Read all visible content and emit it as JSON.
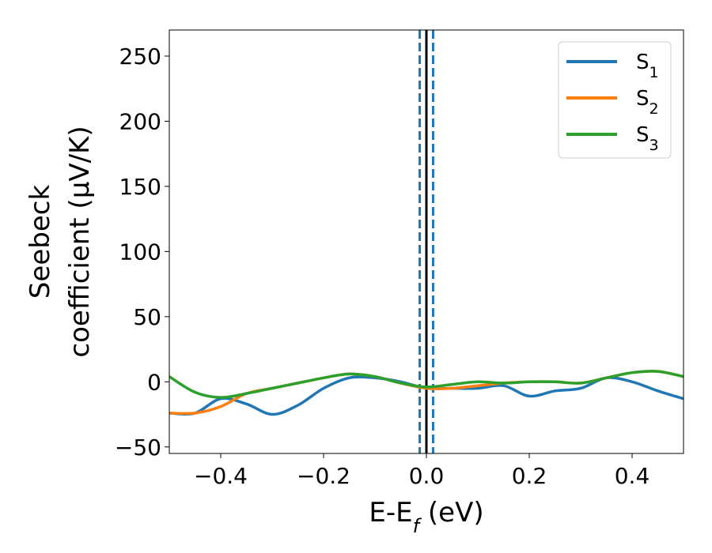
{
  "chart_data": {
    "type": "line",
    "xlabel": {
      "base": "E-E",
      "sub": "f",
      "unit": " (eV)"
    },
    "ylabel": {
      "line1": "Seebeck",
      "line2": "coefficient  (μV/K)"
    },
    "xlim": [
      -0.5,
      0.5
    ],
    "ylim": [
      -55,
      270
    ],
    "xticks": [
      -0.4,
      -0.2,
      0.0,
      0.2,
      0.4
    ],
    "xtick_labels": [
      "−0.4",
      "−0.2",
      "0.0",
      "0.2",
      "0.4"
    ],
    "yticks": [
      -50,
      0,
      50,
      100,
      150,
      200,
      250
    ],
    "ytick_labels": [
      "−50",
      "0",
      "50",
      "100",
      "150",
      "200",
      "250"
    ],
    "grid": false,
    "legend_position": "top-right",
    "vlines": [
      {
        "x": -0.013,
        "style": "dashed",
        "color": "#1f77b4"
      },
      {
        "x": 0.0,
        "style": "solid",
        "color": "#000000"
      },
      {
        "x": 0.013,
        "style": "dashed",
        "color": "#1f77b4"
      }
    ],
    "series": [
      {
        "name": "S",
        "sub": "1",
        "color": "#1f77b4",
        "x": [
          -0.5,
          -0.45,
          -0.4,
          -0.35,
          -0.3,
          -0.25,
          -0.2,
          -0.15,
          -0.1,
          -0.05,
          0.0,
          0.05,
          0.1,
          0.15,
          0.2,
          0.25,
          0.3,
          0.35,
          0.4,
          0.45,
          0.5
        ],
        "y": [
          -24,
          -24,
          -13,
          -17,
          -25,
          -18,
          -5,
          3,
          3,
          0,
          -5,
          -5,
          -5,
          -3,
          -11,
          -7,
          -5,
          3,
          0,
          -7,
          -13
        ]
      },
      {
        "name": "S",
        "sub": "2",
        "color": "#ff7f0e",
        "x": [
          -0.5,
          -0.45,
          -0.4,
          -0.35,
          -0.3,
          -0.25,
          -0.2,
          -0.15,
          -0.1,
          -0.05,
          0.0,
          0.05,
          0.1,
          0.15,
          0.2,
          0.25,
          0.3,
          0.35,
          0.4,
          0.45,
          0.5
        ],
        "y": [
          -24,
          -24,
          -19,
          -9,
          -5,
          -1,
          3,
          6,
          4,
          -1,
          -5,
          -5,
          -3,
          -1,
          0,
          0,
          -1,
          3,
          7,
          8,
          4
        ]
      },
      {
        "name": "S",
        "sub": "3",
        "color": "#2ca02c",
        "x": [
          -0.5,
          -0.45,
          -0.4,
          -0.35,
          -0.3,
          -0.25,
          -0.2,
          -0.15,
          -0.1,
          -0.05,
          0.0,
          0.05,
          0.1,
          0.15,
          0.2,
          0.25,
          0.3,
          0.35,
          0.4,
          0.45,
          0.5
        ],
        "y": [
          4,
          -8,
          -12,
          -9,
          -5,
          -1,
          3,
          6,
          4,
          -1,
          -4,
          -2,
          0,
          -1,
          0,
          0,
          -1,
          3,
          7,
          8,
          4
        ]
      }
    ]
  }
}
